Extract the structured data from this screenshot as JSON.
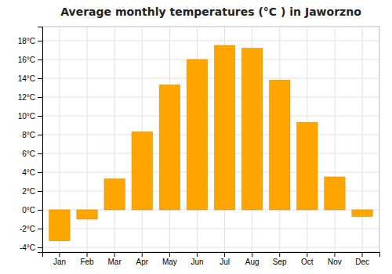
{
  "chart_data": {
    "type": "bar",
    "title": "Average monthly temperatures (°C ) in Jaworzno",
    "categories": [
      "Jan",
      "Feb",
      "Mar",
      "Apr",
      "May",
      "Jun",
      "Jul",
      "Aug",
      "Sep",
      "Oct",
      "Nov",
      "Dec"
    ],
    "values": [
      -3.3,
      -1.0,
      3.3,
      8.3,
      13.3,
      16.0,
      17.5,
      17.2,
      13.8,
      9.3,
      3.5,
      -0.7
    ],
    "color": "#FFA500",
    "ylim": [
      -4.5,
      19.5
    ],
    "yticks": [
      {
        "value": -4,
        "label": "-4°C"
      },
      {
        "value": -2,
        "label": "-2°C"
      },
      {
        "value": 0,
        "label": "0°C"
      },
      {
        "value": 2,
        "label": "2°C"
      },
      {
        "value": 4,
        "label": "4°C"
      },
      {
        "value": 6,
        "label": "6°C"
      },
      {
        "value": 8,
        "label": "8°C"
      },
      {
        "value": 10,
        "label": "10°C"
      },
      {
        "value": 12,
        "label": "12°C"
      },
      {
        "value": 14,
        "label": "14°C"
      },
      {
        "value": 16,
        "label": "16°C"
      },
      {
        "value": 18,
        "label": "18°C"
      }
    ],
    "grid": true
  }
}
